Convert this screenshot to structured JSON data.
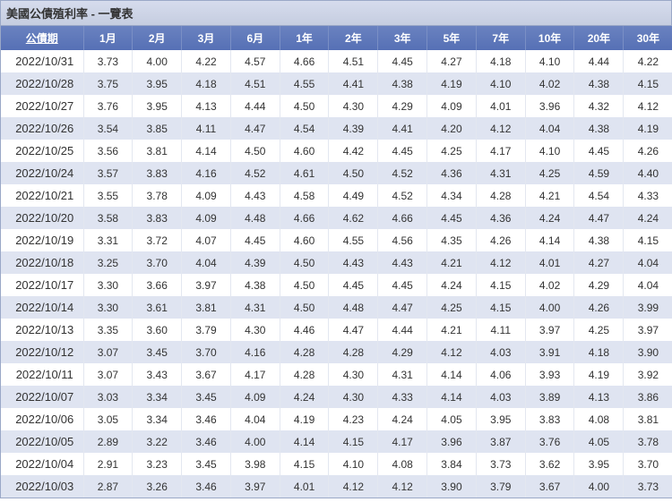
{
  "title": "美國公債殖利率 - 一覽表",
  "columns": [
    "公債期",
    "1月",
    "2月",
    "3月",
    "6月",
    "1年",
    "2年",
    "3年",
    "5年",
    "7年",
    "10年",
    "20年",
    "30年"
  ],
  "rows": [
    [
      "2022/10/31",
      "3.73",
      "4.00",
      "4.22",
      "4.57",
      "4.66",
      "4.51",
      "4.45",
      "4.27",
      "4.18",
      "4.10",
      "4.44",
      "4.22"
    ],
    [
      "2022/10/28",
      "3.75",
      "3.95",
      "4.18",
      "4.51",
      "4.55",
      "4.41",
      "4.38",
      "4.19",
      "4.10",
      "4.02",
      "4.38",
      "4.15"
    ],
    [
      "2022/10/27",
      "3.76",
      "3.95",
      "4.13",
      "4.44",
      "4.50",
      "4.30",
      "4.29",
      "4.09",
      "4.01",
      "3.96",
      "4.32",
      "4.12"
    ],
    [
      "2022/10/26",
      "3.54",
      "3.85",
      "4.11",
      "4.47",
      "4.54",
      "4.39",
      "4.41",
      "4.20",
      "4.12",
      "4.04",
      "4.38",
      "4.19"
    ],
    [
      "2022/10/25",
      "3.56",
      "3.81",
      "4.14",
      "4.50",
      "4.60",
      "4.42",
      "4.45",
      "4.25",
      "4.17",
      "4.10",
      "4.45",
      "4.26"
    ],
    [
      "2022/10/24",
      "3.57",
      "3.83",
      "4.16",
      "4.52",
      "4.61",
      "4.50",
      "4.52",
      "4.36",
      "4.31",
      "4.25",
      "4.59",
      "4.40"
    ],
    [
      "2022/10/21",
      "3.55",
      "3.78",
      "4.09",
      "4.43",
      "4.58",
      "4.49",
      "4.52",
      "4.34",
      "4.28",
      "4.21",
      "4.54",
      "4.33"
    ],
    [
      "2022/10/20",
      "3.58",
      "3.83",
      "4.09",
      "4.48",
      "4.66",
      "4.62",
      "4.66",
      "4.45",
      "4.36",
      "4.24",
      "4.47",
      "4.24"
    ],
    [
      "2022/10/19",
      "3.31",
      "3.72",
      "4.07",
      "4.45",
      "4.60",
      "4.55",
      "4.56",
      "4.35",
      "4.26",
      "4.14",
      "4.38",
      "4.15"
    ],
    [
      "2022/10/18",
      "3.25",
      "3.70",
      "4.04",
      "4.39",
      "4.50",
      "4.43",
      "4.43",
      "4.21",
      "4.12",
      "4.01",
      "4.27",
      "4.04"
    ],
    [
      "2022/10/17",
      "3.30",
      "3.66",
      "3.97",
      "4.38",
      "4.50",
      "4.45",
      "4.45",
      "4.24",
      "4.15",
      "4.02",
      "4.29",
      "4.04"
    ],
    [
      "2022/10/14",
      "3.30",
      "3.61",
      "3.81",
      "4.31",
      "4.50",
      "4.48",
      "4.47",
      "4.25",
      "4.15",
      "4.00",
      "4.26",
      "3.99"
    ],
    [
      "2022/10/13",
      "3.35",
      "3.60",
      "3.79",
      "4.30",
      "4.46",
      "4.47",
      "4.44",
      "4.21",
      "4.11",
      "3.97",
      "4.25",
      "3.97"
    ],
    [
      "2022/10/12",
      "3.07",
      "3.45",
      "3.70",
      "4.16",
      "4.28",
      "4.28",
      "4.29",
      "4.12",
      "4.03",
      "3.91",
      "4.18",
      "3.90"
    ],
    [
      "2022/10/11",
      "3.07",
      "3.43",
      "3.67",
      "4.17",
      "4.28",
      "4.30",
      "4.31",
      "4.14",
      "4.06",
      "3.93",
      "4.19",
      "3.92"
    ],
    [
      "2022/10/07",
      "3.03",
      "3.34",
      "3.45",
      "4.09",
      "4.24",
      "4.30",
      "4.33",
      "4.14",
      "4.03",
      "3.89",
      "4.13",
      "3.86"
    ],
    [
      "2022/10/06",
      "3.05",
      "3.34",
      "3.46",
      "4.04",
      "4.19",
      "4.23",
      "4.24",
      "4.05",
      "3.95",
      "3.83",
      "4.08",
      "3.81"
    ],
    [
      "2022/10/05",
      "2.89",
      "3.22",
      "3.46",
      "4.00",
      "4.14",
      "4.15",
      "4.17",
      "3.96",
      "3.87",
      "3.76",
      "4.05",
      "3.78"
    ],
    [
      "2022/10/04",
      "2.91",
      "3.23",
      "3.45",
      "3.98",
      "4.15",
      "4.10",
      "4.08",
      "3.84",
      "3.73",
      "3.62",
      "3.95",
      "3.70"
    ],
    [
      "2022/10/03",
      "2.87",
      "3.26",
      "3.46",
      "3.97",
      "4.01",
      "4.12",
      "4.12",
      "3.90",
      "3.79",
      "3.67",
      "4.00",
      "3.73"
    ]
  ],
  "style": {
    "header_bg_start": "#6a82c0",
    "header_bg_end": "#5670b5",
    "title_bg_start": "#d6dced",
    "title_bg_end": "#c5cde0",
    "row_even_bg": "#ffffff",
    "row_odd_bg": "#dfe4f1",
    "border_color": "#9aa8c7",
    "header_text_color": "#ffffff",
    "cell_text_color": "#333333",
    "title_fontsize": 13,
    "header_fontsize": 12,
    "cell_fontsize": 12
  }
}
